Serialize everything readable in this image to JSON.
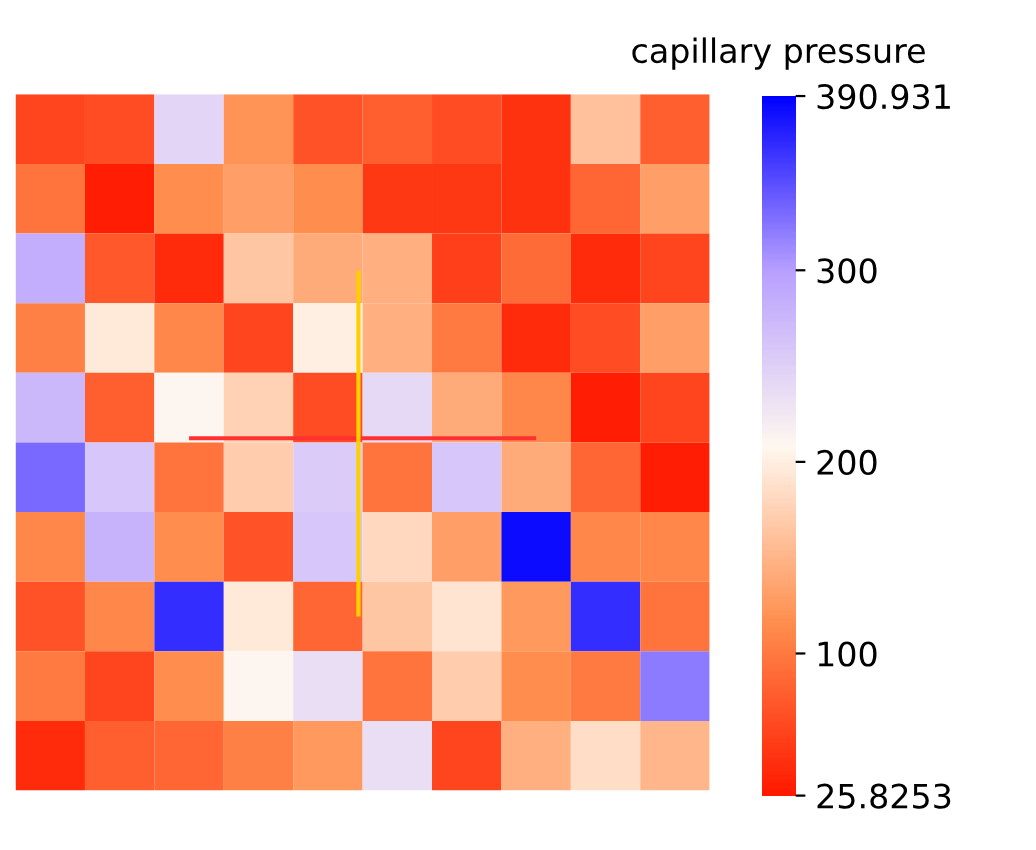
{
  "chart_data": {
    "type": "heatmap",
    "clabel": "capillary pressure",
    "categories": [
      null,
      null,
      null,
      null,
      null,
      null,
      null,
      null,
      null,
      null
    ],
    "y_categories": [
      null,
      null,
      null,
      null,
      null,
      null,
      null,
      null,
      null,
      null
    ],
    "cells": [
      [
        60,
        65,
        245,
        120,
        70,
        80,
        65,
        45,
        160,
        80
      ],
      [
        95,
        30,
        115,
        130,
        115,
        50,
        50,
        45,
        85,
        130
      ],
      [
        285,
        75,
        40,
        165,
        140,
        145,
        55,
        90,
        40,
        60
      ],
      [
        105,
        195,
        110,
        60,
        200,
        145,
        100,
        40,
        65,
        130
      ],
      [
        275,
        80,
        210,
        175,
        65,
        240,
        140,
        110,
        30,
        60
      ],
      [
        330,
        260,
        95,
        170,
        255,
        95,
        260,
        140,
        85,
        30
      ],
      [
        110,
        280,
        115,
        70,
        260,
        180,
        130,
        385,
        110,
        110
      ],
      [
        70,
        110,
        365,
        195,
        85,
        165,
        190,
        125,
        365,
        95
      ],
      [
        100,
        60,
        115,
        210,
        235,
        95,
        170,
        115,
        100,
        320
      ],
      [
        40,
        80,
        85,
        105,
        125,
        235,
        60,
        145,
        185,
        150
      ]
    ],
    "clim": [
      25.8253,
      390.931
    ],
    "cticks": [
      {
        "value": 25.8253,
        "label": "25.8253"
      },
      100,
      200,
      300,
      {
        "value": 390.931,
        "label": "390.931"
      }
    ],
    "tick_labels": false
  }
}
